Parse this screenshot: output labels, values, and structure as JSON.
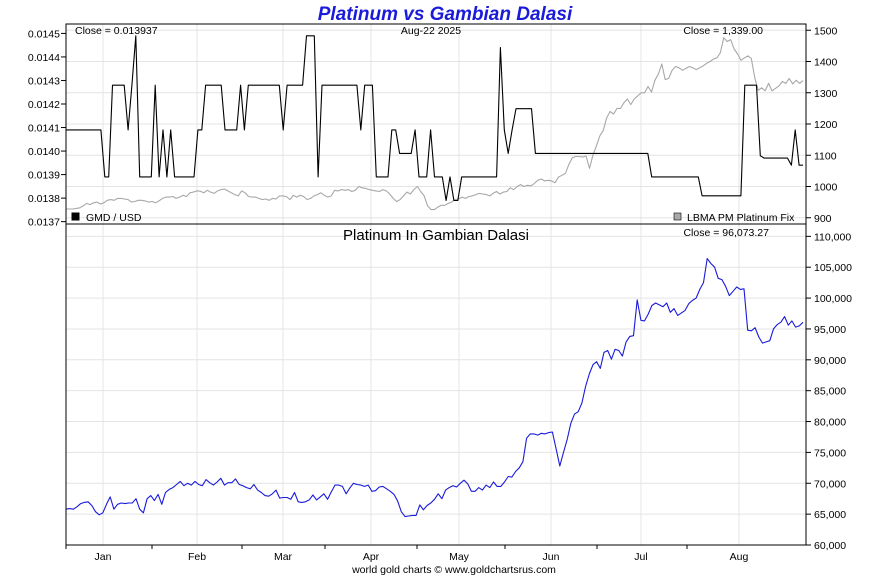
{
  "title": "Platinum vs Gambian Dalasi",
  "credit": "world gold charts © www.goldchartsrus.com",
  "colors": {
    "title": "#1a1adb",
    "gmd_line": "#000000",
    "platinum_fix_line": "#a8a8a8",
    "gmd_price_line": "#1a1adb",
    "grid": "#e4e4e4"
  },
  "chart_data": [
    {
      "type": "line",
      "panel": "top",
      "close_left": "Close = 0.013937",
      "date_label": "Aug-22  2025",
      "close_right": "Close = 1,339.00",
      "legend": [
        {
          "label": "GMD / USD",
          "color": "#000000",
          "position": "bottom-left"
        },
        {
          "label": "LBMA PM Platinum Fix",
          "color": "#a8a8a8",
          "position": "bottom-right"
        }
      ],
      "x_labels": [
        "Jan",
        "Feb",
        "Mar",
        "Apr",
        "May",
        "Jun",
        "Jul",
        "Aug"
      ],
      "y_left": {
        "ylim": [
          0.01369,
          0.01454
        ],
        "ticks": [
          "0.0145",
          "0.0144",
          "0.0143",
          "0.0142",
          "0.0141",
          "0.0140",
          "0.0139",
          "0.0138",
          "0.0137"
        ]
      },
      "y_right": {
        "ylim": [
          880,
          1520
        ],
        "ticks": [
          "1500",
          "1400",
          "1300",
          "1200",
          "1100",
          "1000",
          "900"
        ]
      },
      "grid": true,
      "series": [
        {
          "name": "GMD / USD",
          "axis": "left",
          "values": [
            0.01409,
            0.01409,
            0.01409,
            0.01409,
            0.01409,
            0.01409,
            0.01409,
            0.01409,
            0.01409,
            0.01409,
            0.01389,
            0.01389,
            0.01428,
            0.01428,
            0.01428,
            0.01428,
            0.01409,
            0.01428,
            0.01449,
            0.01389,
            0.01389,
            0.01389,
            0.01389,
            0.01428,
            0.01389,
            0.01409,
            0.01389,
            0.01409,
            0.01389,
            0.01389,
            0.01389,
            0.01389,
            0.01389,
            0.01389,
            0.01409,
            0.01409,
            0.01428,
            0.01428,
            0.01428,
            0.01428,
            0.01428,
            0.01409,
            0.01409,
            0.01409,
            0.01409,
            0.01428,
            0.01409,
            0.01428,
            0.01428,
            0.01428,
            0.01428,
            0.01428,
            0.01428,
            0.01428,
            0.01428,
            0.01428,
            0.01409,
            0.01428,
            0.01428,
            0.01428,
            0.01428,
            0.01428,
            0.01449,
            0.01449,
            0.01449,
            0.01389,
            0.01428,
            0.01428,
            0.01428,
            0.01428,
            0.01428,
            0.01428,
            0.01428,
            0.01428,
            0.01428,
            0.01428,
            0.01409,
            0.01428,
            0.01428,
            0.01428,
            0.01389,
            0.01389,
            0.01389,
            0.01389,
            0.01409,
            0.01409,
            0.01399,
            0.01399,
            0.01399,
            0.01399,
            0.01409,
            0.01389,
            0.01389,
            0.01389,
            0.01409,
            0.01389,
            0.01389,
            0.01389,
            0.01379,
            0.01389,
            0.01379,
            0.01379,
            0.01389,
            0.01389,
            0.01389,
            0.01389,
            0.01389,
            0.01389,
            0.01389,
            0.01389,
            0.01389,
            0.01389,
            0.01444,
            0.01409,
            0.01399,
            0.01409,
            0.01418,
            0.01418,
            0.01418,
            0.01418,
            0.01418,
            0.01399,
            0.01399,
            0.01399,
            0.01399,
            0.01399,
            0.01399,
            0.01399,
            0.01399,
            0.01399,
            0.01399,
            0.01399,
            0.01399,
            0.01399,
            0.01399,
            0.01399,
            0.01399,
            0.01399,
            0.01399,
            0.01399,
            0.01399,
            0.01399,
            0.01399,
            0.01399,
            0.01399,
            0.01399,
            0.01399,
            0.01399,
            0.01399,
            0.01399,
            0.01399,
            0.01389,
            0.01389,
            0.01389,
            0.01389,
            0.01389,
            0.01389,
            0.01389,
            0.01389,
            0.01389,
            0.01389,
            0.01389,
            0.01389,
            0.01389,
            0.01381,
            0.01381,
            0.01381,
            0.01381,
            0.01381,
            0.01381,
            0.01381,
            0.01381,
            0.01381,
            0.01381,
            0.01381,
            0.01428,
            0.01428,
            0.01428,
            0.01428,
            0.01398,
            0.01397,
            0.01397,
            0.01397,
            0.01397,
            0.01397,
            0.01397,
            0.01397,
            0.01394,
            0.01409,
            0.01394,
            0.01394
          ]
        },
        {
          "name": "LBMA PM Platinum Fix",
          "axis": "right",
          "values": [
            928,
            928,
            928,
            930,
            932,
            938,
            946,
            942,
            948,
            950,
            944,
            948,
            956,
            958,
            956,
            962,
            962,
            960,
            958,
            950,
            952,
            956,
            956,
            954,
            950,
            952,
            948,
            954,
            962,
            966,
            966,
            968,
            962,
            966,
            972,
            968,
            980,
            982,
            986,
            985,
            980,
            988,
            982,
            978,
            986,
            990,
            992,
            986,
            980,
            974,
            970,
            986,
            980,
            968,
            966,
            966,
            962,
            958,
            960,
            956,
            962,
            960,
            970,
            970,
            968,
            958,
            972,
            966,
            972,
            968,
            958,
            962,
            970,
            974,
            980,
            972,
            966,
            970,
            988,
            986,
            990,
            988,
            990,
            984,
            988,
            1000,
            996,
            994,
            990,
            988,
            986,
            984,
            990,
            986,
            976,
            962,
            952,
            958,
            970,
            982,
            976,
            990,
            1000,
            984,
            970,
            938,
            926,
            926,
            934,
            940,
            940,
            946,
            950,
            958,
            960,
            966,
            962,
            968,
            970,
            974,
            978,
            976,
            974,
            970,
            978,
            984,
            976,
            982,
            984,
            996,
            990,
            1000,
            1006,
            1000,
            1004,
            1002,
            1010,
            1020,
            1024,
            1018,
            1020,
            1018,
            1012,
            1030,
            1036,
            1042,
            1070,
            1092,
            1096,
            1096,
            1094,
            1098,
            1058,
            1100,
            1130,
            1162,
            1180,
            1220,
            1240,
            1232,
            1250,
            1250,
            1268,
            1280,
            1262,
            1280,
            1290,
            1300,
            1300,
            1320,
            1302,
            1340,
            1360,
            1392,
            1342,
            1346,
            1372,
            1384,
            1380,
            1372,
            1378,
            1384,
            1380,
            1374,
            1380,
            1386,
            1394,
            1400,
            1408,
            1412,
            1428,
            1476,
            1464,
            1470,
            1440,
            1424,
            1404,
            1412,
            1418,
            1410,
            1348,
            1308,
            1316,
            1306,
            1330,
            1306,
            1314,
            1322,
            1336,
            1330,
            1346,
            1328,
            1340,
            1330,
            1339
          ]
        }
      ]
    },
    {
      "type": "line",
      "panel": "bottom",
      "title": "Platinum In Gambian Dalasi",
      "close_right": "Close = 96,073.27",
      "x_labels": [
        "Jan",
        "Feb",
        "Mar",
        "Apr",
        "May",
        "Jun",
        "Jul",
        "Aug"
      ],
      "ylim": [
        60000,
        112000
      ],
      "yticks": [
        "110,000",
        "105,000",
        "100,000",
        "95,000",
        "90,000",
        "85,000",
        "80,000",
        "75,000",
        "70,000",
        "65,000",
        "60,000"
      ],
      "grid": true,
      "series": [
        {
          "name": "Platinum In Gambian Dalasi",
          "values": [
            65800,
            65900,
            65800,
            66200,
            66700,
            66900,
            67000,
            66400,
            65400,
            64900,
            65200,
            66600,
            67800,
            65800,
            66600,
            66800,
            66700,
            66800,
            66800,
            67500,
            65800,
            65200,
            67500,
            68000,
            67200,
            68200,
            66600,
            68500,
            69000,
            69300,
            69800,
            70300,
            69600,
            70000,
            69700,
            70300,
            69800,
            69600,
            70600,
            70100,
            69700,
            70200,
            70800,
            69700,
            70100,
            70100,
            70700,
            69800,
            69600,
            69300,
            69100,
            69800,
            68900,
            68500,
            68000,
            67900,
            68300,
            68900,
            67600,
            67700,
            67700,
            67400,
            68500,
            67000,
            66900,
            67000,
            67300,
            68100,
            67300,
            67800,
            68300,
            67400,
            68600,
            69700,
            69700,
            69500,
            68300,
            69200,
            70000,
            69800,
            69700,
            69500,
            69700,
            68700,
            68800,
            69400,
            69500,
            69100,
            68700,
            68200,
            67100,
            65400,
            64600,
            64700,
            64800,
            64800,
            66500,
            65700,
            66400,
            66800,
            67400,
            68300,
            67500,
            68900,
            69300,
            69600,
            69400,
            70000,
            70500,
            69900,
            68700,
            68700,
            69300,
            68900,
            69700,
            69300,
            70200,
            69500,
            69500,
            70200,
            71100,
            71000,
            71900,
            72500,
            73500,
            77300,
            78000,
            78000,
            77800,
            78100,
            78000,
            78200,
            78300,
            75600,
            72800,
            75000,
            77100,
            79700,
            81200,
            81600,
            83000,
            85700,
            87700,
            89200,
            89700,
            88600,
            91200,
            91500,
            90100,
            91700,
            91500,
            90600,
            92900,
            93800,
            93900,
            99700,
            96400,
            96300,
            97400,
            98800,
            99200,
            98900,
            98600,
            99200,
            97700,
            98300,
            97200,
            97600,
            98000,
            99100,
            99600,
            100000,
            101400,
            102500,
            106400,
            105600,
            105000,
            103200,
            103000,
            101900,
            100400,
            101100,
            101800,
            101400,
            101500,
            94800,
            94700,
            95200,
            93700,
            92700,
            92900,
            93100,
            95000,
            95700,
            96100,
            97000,
            95600,
            96300,
            95300,
            95500,
            96073
          ]
        }
      ]
    }
  ]
}
